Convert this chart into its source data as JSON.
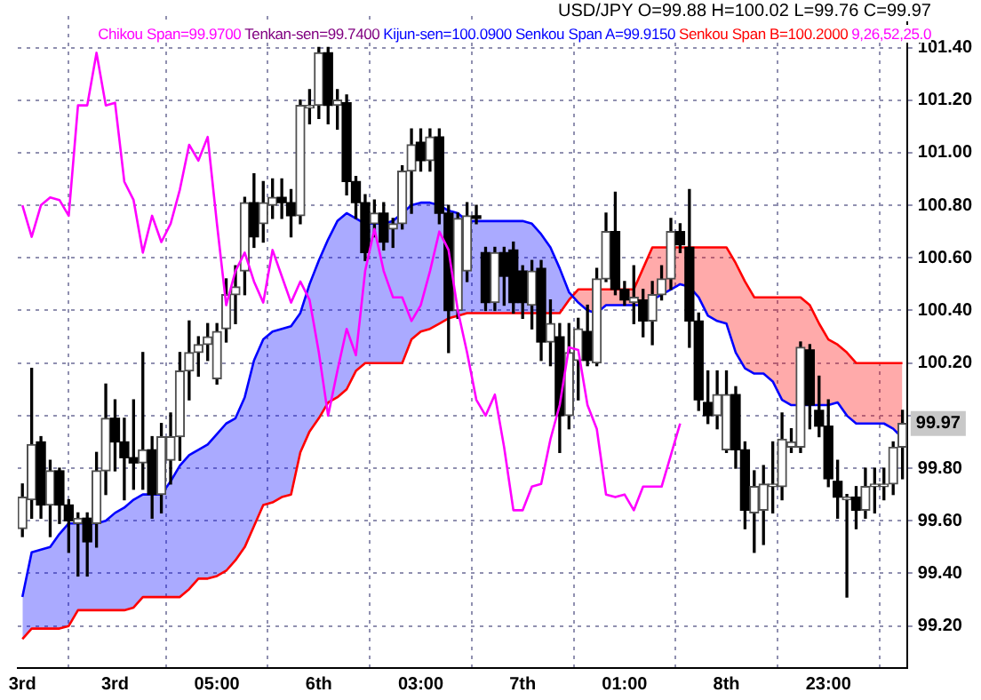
{
  "chart_data": {
    "type": "candlestick",
    "title": "USD/JPY O=99.88 H=100.02 L=99.76 C=99.97",
    "categories": [
      "3rd",
      null,
      null,
      null,
      null,
      null,
      null,
      null,
      null,
      null,
      "3rd",
      null,
      null,
      null,
      null,
      null,
      null,
      null,
      null,
      null,
      null,
      "05:00",
      null,
      null,
      null,
      null,
      null,
      null,
      null,
      null,
      null,
      null,
      "6th",
      null,
      null,
      null,
      null,
      null,
      null,
      null,
      null,
      null,
      null,
      "03:00",
      null,
      null,
      null,
      null,
      null,
      null,
      null,
      null,
      null,
      null,
      "7th",
      null,
      null,
      null,
      null,
      null,
      null,
      null,
      null,
      null,
      null,
      "01:00",
      null,
      null,
      null,
      null,
      null,
      null,
      null,
      null,
      null,
      null,
      "8th",
      null,
      null,
      null,
      null,
      null,
      null,
      null,
      null,
      null,
      null,
      "23:00",
      null,
      null,
      null,
      null,
      null,
      null,
      null,
      null
    ],
    "ohlc": [
      [
        99.57,
        99.74,
        99.54,
        99.69
      ],
      [
        99.68,
        100.18,
        99.61,
        99.89
      ],
      [
        99.9,
        99.92,
        99.61,
        99.66
      ],
      [
        99.66,
        99.83,
        99.54,
        99.79
      ],
      [
        99.79,
        99.8,
        99.59,
        99.66
      ],
      [
        99.66,
        99.68,
        99.48,
        99.6
      ],
      [
        99.59,
        99.63,
        99.39,
        99.61
      ],
      [
        99.61,
        99.63,
        99.39,
        99.52
      ],
      [
        99.59,
        99.86,
        99.5,
        99.79
      ],
      [
        99.79,
        100.12,
        99.7,
        99.99
      ],
      [
        99.99,
        100.06,
        99.79,
        99.9
      ],
      [
        99.9,
        99.99,
        99.68,
        99.84
      ],
      [
        99.84,
        100.06,
        99.72,
        99.82
      ],
      [
        99.82,
        100.24,
        99.72,
        99.87
      ],
      [
        99.87,
        99.92,
        99.61,
        99.7
      ],
      [
        99.7,
        99.97,
        99.63,
        99.92
      ],
      [
        99.83,
        100.01,
        99.74,
        99.92
      ],
      [
        99.92,
        100.24,
        99.83,
        100.17
      ],
      [
        100.17,
        100.36,
        100.06,
        100.24
      ],
      [
        100.24,
        100.3,
        100.15,
        100.27
      ],
      [
        100.27,
        100.35,
        100.21,
        100.3
      ],
      [
        100.14,
        100.35,
        100.12,
        100.32
      ],
      [
        100.33,
        100.52,
        100.28,
        100.46
      ],
      [
        100.46,
        100.57,
        100.35,
        100.49
      ],
      [
        100.55,
        100.83,
        100.46,
        100.81
      ],
      [
        100.81,
        100.92,
        100.64,
        100.68
      ],
      [
        100.73,
        100.89,
        100.66,
        100.81
      ],
      [
        100.8,
        100.9,
        100.75,
        100.83
      ],
      [
        100.83,
        100.9,
        100.75,
        100.81
      ],
      [
        100.81,
        100.86,
        100.68,
        100.76
      ],
      [
        100.76,
        101.2,
        100.73,
        101.18
      ],
      [
        101.17,
        101.24,
        101.11,
        101.18
      ],
      [
        101.18,
        101.4,
        101.13,
        101.38
      ],
      [
        101.38,
        101.4,
        101.11,
        101.18
      ],
      [
        101.18,
        101.24,
        101.09,
        101.2
      ],
      [
        101.19,
        101.22,
        100.84,
        100.89
      ],
      [
        100.89,
        100.91,
        100.75,
        100.81
      ],
      [
        100.81,
        100.84,
        100.59,
        100.62
      ],
      [
        100.73,
        100.82,
        100.68,
        100.77
      ],
      [
        100.77,
        100.81,
        100.63,
        100.66
      ],
      [
        100.71,
        100.75,
        100.64,
        100.73
      ],
      [
        100.73,
        100.95,
        100.71,
        100.93
      ],
      [
        100.93,
        101.09,
        100.77,
        101.03
      ],
      [
        101.04,
        101.09,
        100.93,
        100.97
      ],
      [
        100.97,
        101.09,
        100.93,
        101.06
      ],
      [
        101.06,
        101.09,
        100.73,
        100.77
      ],
      [
        100.77,
        100.8,
        100.24,
        100.4
      ],
      [
        100.4,
        100.77,
        100.37,
        100.75
      ],
      [
        100.55,
        100.81,
        100.51,
        100.76
      ],
      [
        100.76,
        100.8,
        100.73,
        100.75
      ],
      [
        100.62,
        100.64,
        100.4,
        100.43
      ],
      [
        100.43,
        100.64,
        100.4,
        100.62
      ],
      [
        100.62,
        100.64,
        100.42,
        100.53
      ],
      [
        100.63,
        100.66,
        100.39,
        100.43
      ],
      [
        100.55,
        100.57,
        100.37,
        100.43
      ],
      [
        100.42,
        100.59,
        100.33,
        100.55
      ],
      [
        100.56,
        100.59,
        100.21,
        100.28
      ],
      [
        100.28,
        100.44,
        100.19,
        100.35
      ],
      [
        100.3,
        100.35,
        99.86,
        100.0
      ],
      [
        100.0,
        100.35,
        99.95,
        100.24
      ],
      [
        100.21,
        100.37,
        100.06,
        100.33
      ],
      [
        100.32,
        100.42,
        100.19,
        100.21
      ],
      [
        100.2,
        100.56,
        100.19,
        100.52
      ],
      [
        100.52,
        100.77,
        100.51,
        100.7
      ],
      [
        100.7,
        100.85,
        100.46,
        100.48
      ],
      [
        100.48,
        100.51,
        100.42,
        100.44
      ],
      [
        100.43,
        100.57,
        100.35,
        100.45
      ],
      [
        100.44,
        100.48,
        100.3,
        100.36
      ],
      [
        100.36,
        100.51,
        100.27,
        100.46
      ],
      [
        100.46,
        100.57,
        100.44,
        100.52
      ],
      [
        100.52,
        100.75,
        100.48,
        100.7
      ],
      [
        100.7,
        100.73,
        100.62,
        100.65
      ],
      [
        100.64,
        100.86,
        100.26,
        100.36
      ],
      [
        100.36,
        100.39,
        100.02,
        100.06
      ],
      [
        100.05,
        100.17,
        99.97,
        100.0
      ],
      [
        100.0,
        100.17,
        99.95,
        100.08
      ],
      [
        99.87,
        100.17,
        99.86,
        100.08
      ],
      [
        100.08,
        100.11,
        99.8,
        99.87
      ],
      [
        99.87,
        99.9,
        99.57,
        99.64
      ],
      [
        99.63,
        99.79,
        99.48,
        99.73
      ],
      [
        99.64,
        99.81,
        99.51,
        99.74
      ],
      [
        99.73,
        99.9,
        99.63,
        99.74
      ],
      [
        99.73,
        100.01,
        99.68,
        99.91
      ],
      [
        99.88,
        99.95,
        99.86,
        99.9
      ],
      [
        99.88,
        100.28,
        99.86,
        100.26
      ],
      [
        100.25,
        100.27,
        99.95,
        100.04
      ],
      [
        100.02,
        100.15,
        99.92,
        99.96
      ],
      [
        99.96,
        100.06,
        99.73,
        99.76
      ],
      [
        99.75,
        99.83,
        99.61,
        99.69
      ],
      [
        99.68,
        99.7,
        99.31,
        99.69
      ],
      [
        99.69,
        99.73,
        99.57,
        99.64
      ],
      [
        99.64,
        99.8,
        99.61,
        99.73
      ],
      [
        99.73,
        99.8,
        99.63,
        99.74
      ],
      [
        99.73,
        99.8,
        99.68,
        99.74
      ],
      [
        99.74,
        99.9,
        99.7,
        99.88
      ],
      [
        99.88,
        100.02,
        99.76,
        99.97
      ]
    ],
    "series": [
      {
        "name": "Chikou Span=99.9700",
        "type": "line",
        "color": "#ff00ff",
        "values": [
          100.8,
          100.68,
          100.8,
          100.83,
          100.82,
          100.76,
          101.18,
          101.18,
          101.38,
          101.18,
          101.19,
          100.89,
          100.82,
          100.62,
          100.76,
          100.66,
          100.73,
          100.86,
          101.03,
          100.97,
          101.06,
          100.73,
          100.42,
          100.55,
          100.62,
          100.51,
          100.43,
          100.63,
          100.53,
          100.43,
          100.51,
          100.44,
          100.24,
          100.0,
          100.17,
          100.33,
          100.23,
          100.55,
          100.71,
          100.55,
          100.45,
          100.45,
          100.36,
          100.42,
          100.55,
          100.7,
          100.63,
          100.4,
          100.24,
          100.06,
          100.0,
          100.08,
          99.88,
          99.64,
          99.64,
          99.73,
          99.74,
          99.91,
          100.04,
          100.26,
          100.25,
          100.04,
          99.95,
          99.7,
          99.69,
          99.7,
          99.64,
          99.73,
          99.73,
          99.73,
          99.85,
          99.97,
          null,
          null,
          null,
          null,
          null,
          null,
          null,
          null,
          null,
          null,
          null,
          null,
          null,
          null,
          null,
          null,
          null,
          null,
          null,
          null,
          null,
          null,
          null,
          null
        ]
      },
      {
        "name": "Senkou Span A=99.9150",
        "type": "line",
        "color": "#0000ff",
        "values": [
          99.31,
          99.48,
          99.49,
          99.5,
          99.55,
          99.59,
          99.59,
          99.59,
          99.59,
          99.6,
          99.63,
          99.65,
          99.68,
          99.7,
          99.7,
          99.7,
          99.75,
          99.81,
          99.85,
          99.87,
          99.89,
          99.93,
          99.97,
          99.99,
          100.07,
          100.21,
          100.29,
          100.32,
          100.33,
          100.34,
          100.39,
          100.5,
          100.59,
          100.67,
          100.74,
          100.77,
          100.75,
          100.73,
          100.73,
          100.73,
          100.74,
          100.77,
          100.8,
          100.81,
          100.81,
          100.8,
          100.78,
          100.77,
          100.74,
          100.74,
          100.74,
          100.74,
          100.74,
          100.74,
          100.74,
          100.73,
          100.69,
          100.64,
          100.56,
          100.47,
          100.43,
          100.4,
          100.39,
          100.42,
          100.42,
          100.42,
          100.42,
          100.42,
          100.44,
          100.46,
          100.48,
          100.5,
          100.49,
          100.45,
          100.38,
          100.36,
          100.35,
          100.24,
          100.18,
          100.16,
          100.16,
          100.13,
          100.06,
          100.04,
          100.04,
          100.04,
          100.04,
          100.04,
          100.05,
          100.0,
          99.97,
          99.97,
          99.97,
          99.97,
          99.95,
          99.915
        ],
        "upper": [
          99.31,
          99.48,
          99.49,
          99.5,
          99.55,
          99.59,
          99.59,
          99.59,
          99.59,
          99.6,
          99.63,
          99.65,
          99.68,
          99.7,
          99.7,
          99.7,
          99.75,
          99.81,
          99.85,
          99.87,
          99.89,
          99.93,
          99.97,
          99.99,
          100.07,
          100.21,
          100.29,
          100.32,
          100.33,
          100.34,
          100.39,
          100.5,
          100.59,
          100.67,
          100.74,
          100.77,
          100.75,
          100.73,
          100.73,
          100.73,
          100.74,
          100.77,
          100.8,
          100.81,
          100.81,
          100.8,
          100.78,
          100.77,
          100.74,
          100.74,
          100.74,
          100.74,
          100.74,
          100.74,
          100.74,
          100.73,
          100.69,
          100.64,
          100.56,
          100.47,
          100.43,
          100.4,
          100.39,
          100.42,
          100.42,
          100.42,
          100.42,
          100.42,
          100.44,
          100.46,
          100.48,
          100.5,
          100.49,
          100.45,
          100.38,
          100.36,
          100.35,
          100.24,
          100.18,
          100.16,
          100.16,
          100.13,
          100.06,
          100.04,
          100.04,
          100.04,
          100.04,
          100.04,
          100.05,
          100.0,
          99.97,
          99.97,
          99.97,
          99.97,
          99.95,
          99.915
        ],
        "lower": [
          99.15,
          99.19,
          99.19,
          99.19,
          99.19,
          99.2,
          99.26,
          99.26,
          99.26,
          99.26,
          99.26,
          99.26,
          99.27,
          99.31,
          99.31,
          99.31,
          99.31,
          99.31,
          99.34,
          99.38,
          99.38,
          99.39,
          99.41,
          99.45,
          99.5,
          99.58,
          99.66,
          99.67,
          99.69,
          99.7,
          99.86,
          99.94,
          99.99,
          100.05,
          100.07,
          100.1,
          100.17,
          100.2,
          100.2,
          100.2,
          100.2,
          100.2,
          100.29,
          100.32,
          100.33,
          100.35,
          100.37,
          100.38,
          100.39,
          100.39,
          100.39,
          100.39,
          100.39,
          100.39,
          100.39,
          100.39,
          100.39,
          100.39,
          100.39,
          100.44,
          100.48,
          100.48,
          100.48,
          100.48,
          100.48,
          100.48,
          100.48,
          100.56,
          100.64,
          100.64,
          100.64,
          100.64,
          100.64,
          100.64,
          100.64,
          100.64,
          100.64,
          100.58,
          100.51,
          100.45,
          100.45,
          100.45,
          100.45,
          100.45,
          100.45,
          100.42,
          100.35,
          100.29,
          100.27,
          100.24,
          100.2,
          100.2,
          100.2,
          100.2,
          100.2,
          100.2
        ]
      },
      {
        "name": "Senkou Span B=100.2000",
        "type": "line",
        "color": "#ff0000",
        "values": [
          99.15,
          99.19,
          99.19,
          99.19,
          99.19,
          99.2,
          99.26,
          99.26,
          99.26,
          99.26,
          99.26,
          99.26,
          99.27,
          99.31,
          99.31,
          99.31,
          99.31,
          99.31,
          99.34,
          99.38,
          99.38,
          99.39,
          99.41,
          99.45,
          99.5,
          99.58,
          99.66,
          99.67,
          99.69,
          99.7,
          99.86,
          99.94,
          99.99,
          100.05,
          100.07,
          100.1,
          100.17,
          100.2,
          100.2,
          100.2,
          100.2,
          100.2,
          100.29,
          100.32,
          100.33,
          100.35,
          100.37,
          100.38,
          100.39,
          100.39,
          100.39,
          100.39,
          100.39,
          100.39,
          100.39,
          100.39,
          100.39,
          100.39,
          100.39,
          100.44,
          100.48,
          100.48,
          100.48,
          100.48,
          100.48,
          100.48,
          100.48,
          100.56,
          100.64,
          100.64,
          100.64,
          100.64,
          100.64,
          100.64,
          100.64,
          100.64,
          100.64,
          100.58,
          100.51,
          100.45,
          100.45,
          100.45,
          100.45,
          100.45,
          100.45,
          100.42,
          100.35,
          100.29,
          100.27,
          100.24,
          100.2,
          100.2,
          100.2,
          100.2,
          100.2,
          100.2
        ]
      }
    ],
    "ylim": [
      99.04,
      101.52
    ],
    "yticks": [
      {
        "value": 99.2,
        "label": "99.20"
      },
      {
        "value": 99.4,
        "label": "99.40"
      },
      {
        "value": 99.6,
        "label": "99.60"
      },
      {
        "value": 99.8,
        "label": "99.80"
      },
      {
        "value": 100,
        "label": null
      },
      {
        "value": 100.2,
        "label": "100.20"
      },
      {
        "value": 100.4,
        "label": "100.40"
      },
      {
        "value": 100.6,
        "label": "100.60"
      },
      {
        "value": 100.8,
        "label": "100.80"
      },
      {
        "value": 101,
        "label": "101.00"
      },
      {
        "value": 101.2,
        "label": "101.20"
      },
      {
        "value": 101.4,
        "label": "101.40"
      }
    ],
    "grid": true,
    "legend": "top right",
    "marker": "none",
    "annotations": [
      "Tenkan-sen=99.7400",
      "Kijun-sen=100.0900",
      "9,26,52,25.0",
      "99.97"
    ]
  }
}
